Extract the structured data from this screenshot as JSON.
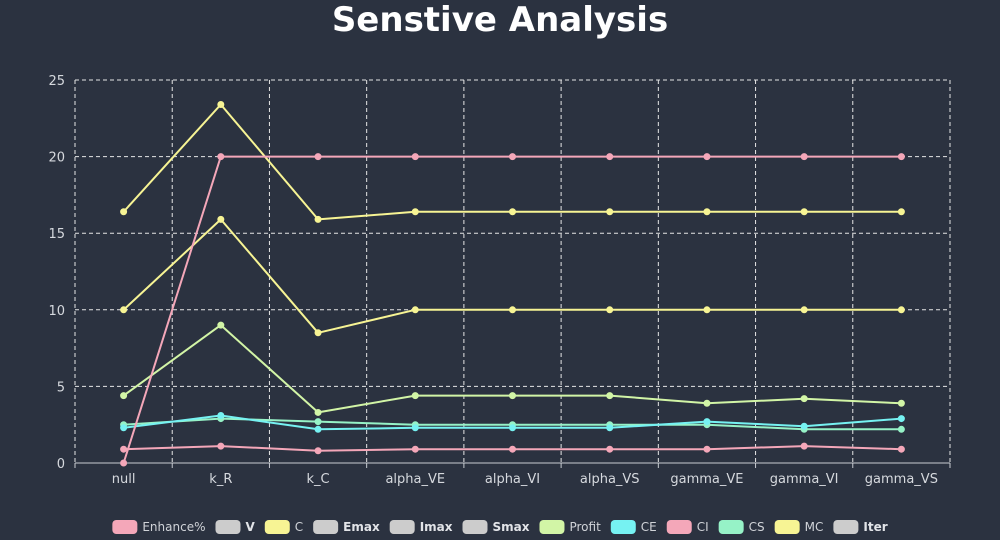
{
  "chart_data": {
    "type": "line",
    "title": "Senstive Analysis",
    "xlabel": "",
    "ylabel": "",
    "ylim": [
      0,
      25
    ],
    "y_ticks": [
      0,
      5,
      10,
      15,
      20,
      25
    ],
    "grid": true,
    "legend_position": "bottom",
    "categories": [
      "null",
      "k_R",
      "k_C",
      "alpha_VE",
      "alpha_VI",
      "alpha_VS",
      "gamma_VE",
      "gamma_VI",
      "gamma_VS"
    ],
    "legend": [
      {
        "name": "Enhance%",
        "color": "#f4a7b9",
        "bold": false
      },
      {
        "name": "V",
        "color": "#cccccc",
        "bold": true
      },
      {
        "name": "C",
        "color": "#f7f494",
        "bold": false
      },
      {
        "name": "Emax",
        "color": "#cccccc",
        "bold": true
      },
      {
        "name": "Imax",
        "color": "#cccccc",
        "bold": true
      },
      {
        "name": "Smax",
        "color": "#cccccc",
        "bold": true
      },
      {
        "name": "Profit",
        "color": "#d2f5a6",
        "bold": false
      },
      {
        "name": "CE",
        "color": "#76f2f2",
        "bold": false
      },
      {
        "name": "CI",
        "color": "#f4a7b9",
        "bold": false
      },
      {
        "name": "CS",
        "color": "#96f2c7",
        "bold": false
      },
      {
        "name": "MC",
        "color": "#f7f494",
        "bold": false
      },
      {
        "name": "Iter",
        "color": "#cccccc",
        "bold": true
      }
    ],
    "series": [
      {
        "name": "C",
        "color": "#f7f494",
        "values": [
          16.4,
          23.4,
          15.9,
          16.4,
          16.4,
          16.4,
          16.4,
          16.4,
          16.4
        ]
      },
      {
        "name": "MC",
        "color": "#f7f494",
        "values": [
          10.0,
          15.9,
          8.5,
          10.0,
          10.0,
          10.0,
          10.0,
          10.0,
          10.0
        ]
      },
      {
        "name": "Profit",
        "color": "#d2f5a6",
        "values": [
          4.4,
          9.0,
          3.3,
          4.4,
          4.4,
          4.4,
          3.9,
          4.2,
          3.9
        ]
      },
      {
        "name": "CS",
        "color": "#96f2c7",
        "values": [
          2.5,
          2.9,
          2.7,
          2.5,
          2.5,
          2.5,
          2.5,
          2.2,
          2.2
        ]
      },
      {
        "name": "CE",
        "color": "#76f2f2",
        "values": [
          2.3,
          3.1,
          2.2,
          2.3,
          2.3,
          2.3,
          2.7,
          2.4,
          2.9
        ]
      },
      {
        "name": "Enhance%",
        "color": "#f4a7b9",
        "values": [
          0.0,
          20.0,
          20.0,
          20.0,
          20.0,
          20.0,
          20.0,
          20.0,
          20.0
        ]
      },
      {
        "name": "CI",
        "color": "#f4a7b9",
        "values": [
          0.9,
          1.1,
          0.8,
          0.9,
          0.9,
          0.9,
          0.9,
          1.1,
          0.9
        ]
      }
    ]
  }
}
